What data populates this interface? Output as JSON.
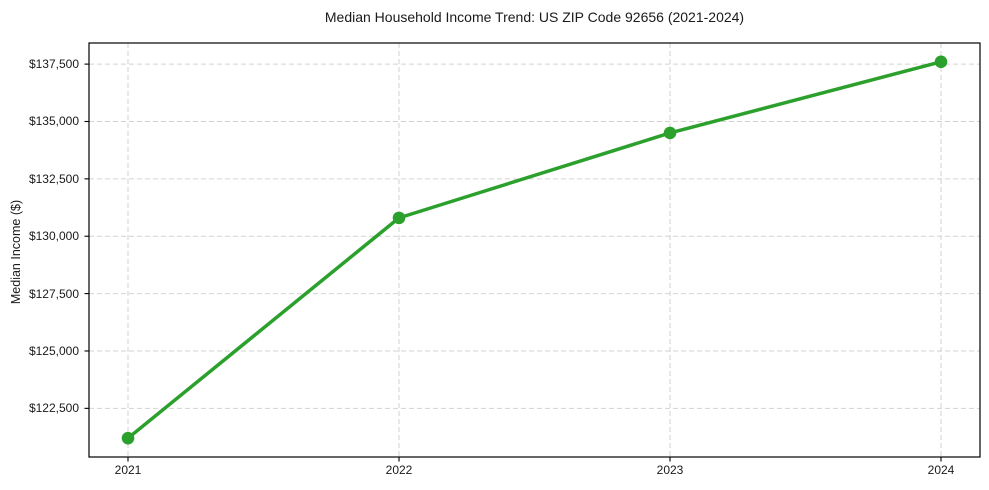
{
  "chart_data": {
    "type": "line",
    "title": "Median Household Income Trend: US ZIP Code 92656 (2021-2024)",
    "xlabel": "",
    "ylabel": "Median Income ($)",
    "categories": [
      "2021",
      "2022",
      "2023",
      "2024"
    ],
    "values": [
      121200,
      130800,
      134500,
      137600
    ],
    "y_ticks": [
      {
        "value": 122500,
        "label": "$122,500"
      },
      {
        "value": 125000,
        "label": "$125,000"
      },
      {
        "value": 127500,
        "label": "$127,500"
      },
      {
        "value": 130000,
        "label": "$130,000"
      },
      {
        "value": 132500,
        "label": "$132,500"
      },
      {
        "value": 135000,
        "label": "$135,000"
      },
      {
        "value": 137500,
        "label": "$137,500"
      }
    ],
    "ylim": [
      120380,
      138420
    ],
    "grid": true,
    "grid_style": "dashed",
    "legend_position": "none",
    "colors": {
      "line": "#2ca02c",
      "marker": "#2ca02c",
      "grid": "#d2d2d2",
      "axis": "#000000",
      "text": "#1a1a1a",
      "background": "#ffffff"
    }
  }
}
